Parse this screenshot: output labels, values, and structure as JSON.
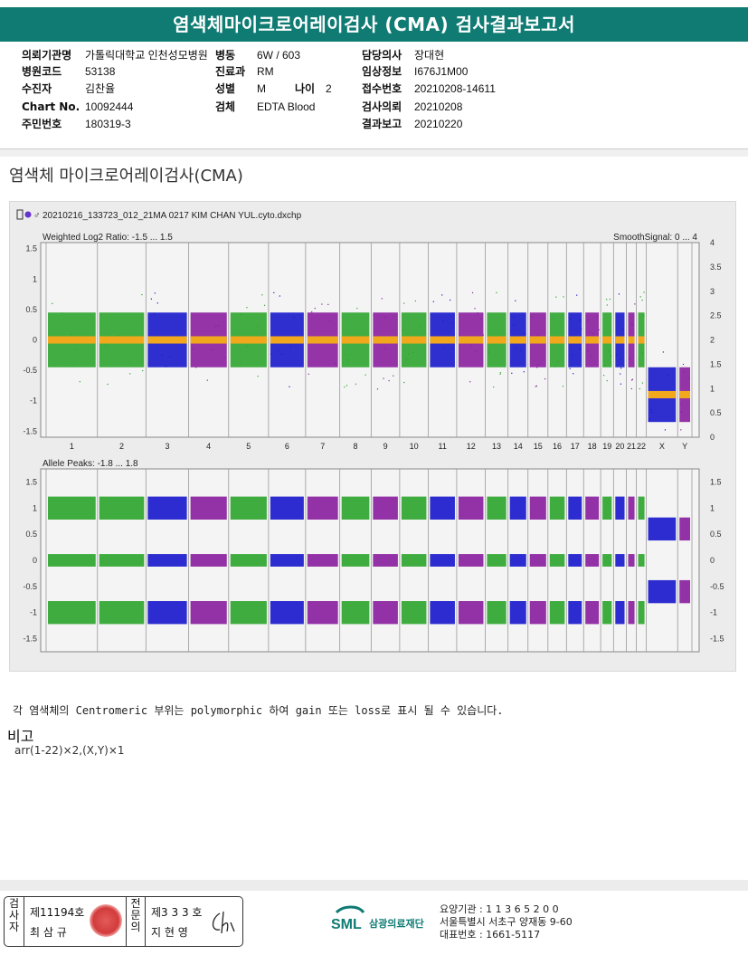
{
  "title": "염색체마이크로어레이검사 (CMA) 검사결과보고서",
  "info": {
    "col1": [
      {
        "label": "의뢰기관명",
        "value": "가톨릭대학교 인천성모병원"
      },
      {
        "label": "병원코드",
        "value": "53138"
      },
      {
        "label": "수진자",
        "value": "김찬율"
      },
      {
        "label": "Chart No.",
        "value": "10092444"
      },
      {
        "label": "주민번호",
        "value": "180319-3"
      }
    ],
    "col2": [
      {
        "label": "병동",
        "value": "6W / 603"
      },
      {
        "label": "진료과",
        "value": "RM"
      },
      {
        "label": "성별",
        "value": "M"
      },
      {
        "label": "검체",
        "value": "EDTA Blood"
      }
    ],
    "age": {
      "label": "나이",
      "value": "2"
    },
    "col3": [
      {
        "label": "담당의사",
        "value": "장대현"
      },
      {
        "label": "임상정보",
        "value": "I676J1M00"
      },
      {
        "label": "접수번호",
        "value": "20210208-14611"
      },
      {
        "label": "검사의뢰",
        "value": "20210208"
      },
      {
        "label": "결과보고",
        "value": "20210220"
      }
    ]
  },
  "section_title": "염색체 마이크로어레이검사(CMA)",
  "plot": {
    "file_name": "20210216_133723_012_21MA 0217 KIM CHAN YUL.cyto.dxchp",
    "top_label": "Weighted Log2 Ratio: -1.5 ... 1.5",
    "top_right_label": "SmoothSignal: 0 ... 4",
    "bottom_label": "Allele Peaks: -1.8 ... 1.8",
    "top_left_ticks": [
      "1.5",
      "1",
      "0.5",
      "0",
      "-0.5",
      "-1",
      "-1.5"
    ],
    "top_right_ticks": [
      "4",
      "3.5",
      "3",
      "2.5",
      "2",
      "1.5",
      "1",
      "0.5",
      "0"
    ],
    "bottom_left_ticks": [
      "1.5",
      "1",
      "0.5",
      "0",
      "-0.5",
      "-1",
      "-1.5"
    ],
    "bottom_right_ticks": [
      "1.5",
      "1",
      "0.5",
      "0",
      "-0.5",
      "-1",
      "-1.5"
    ],
    "chromosomes": [
      "1",
      "2",
      "3",
      "4",
      "5",
      "6",
      "7",
      "8",
      "9",
      "10",
      "11",
      "12",
      "13",
      "14",
      "15",
      "16",
      "17",
      "18",
      "19",
      "20",
      "21",
      "22",
      "X",
      "Y"
    ],
    "colors": {
      "green": "#2fa52f",
      "blue": "#1a1acc",
      "purple": "#8a1f9e",
      "orange": "#f2a81c",
      "panel": "#f4f4f4"
    }
  },
  "note": "각 염색체의 Centromeric 부위는 polymorphic 하여 gain 또는 loss로 표시 될 수 있습니다.",
  "remark_heading": "비고",
  "remark_value": "arr(1-22)×2,(X,Y)×1",
  "sign": {
    "col1_vertical": "검사자",
    "examiner_id": "제11194호",
    "examiner_name": "최 삼 규",
    "col2_vertical": "전문의",
    "doctor_id": "제3 3 3 호",
    "doctor_name": "지 현 영"
  },
  "footer": {
    "logo_text": "SML",
    "org_name": "삼광의료재단",
    "line1": "요양기관 : 1 1 3 6 5 2 0 0",
    "line2": "서울특별시 서초구 양재동 9-60",
    "line3": "대표번호 : 1661-5117"
  }
}
